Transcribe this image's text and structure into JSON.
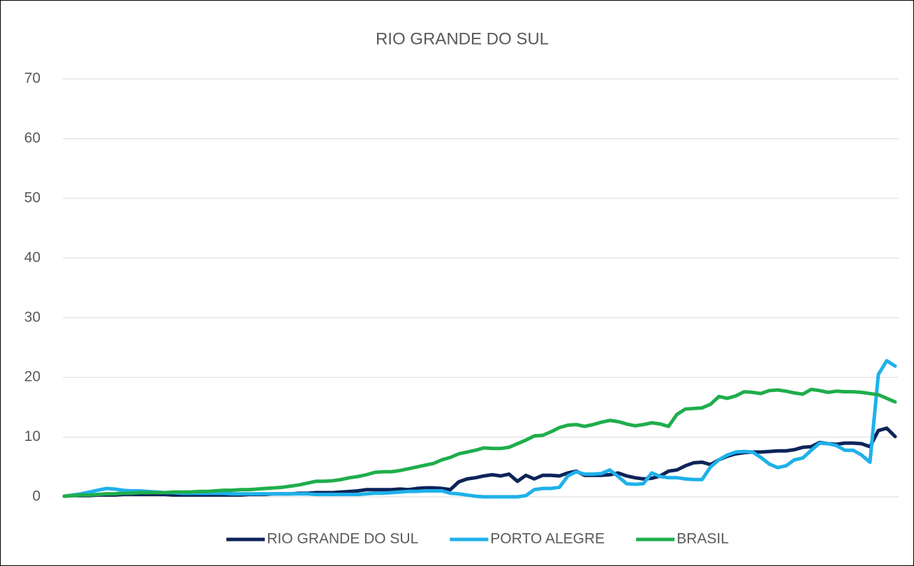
{
  "chart_data": {
    "type": "line",
    "title": "RIO GRANDE DO SUL",
    "categories": [
      null,
      null,
      null,
      null,
      null,
      null,
      null,
      null,
      null,
      null,
      null,
      null,
      null,
      null,
      null,
      null,
      null,
      null,
      null,
      null,
      null,
      null,
      null,
      null,
      null,
      null,
      null,
      null,
      null,
      null,
      null,
      null,
      null,
      null,
      null,
      null,
      null,
      null,
      null,
      null,
      null,
      null,
      null,
      null,
      null,
      null,
      null,
      null,
      null,
      null,
      null,
      null,
      null,
      null,
      null,
      null,
      null,
      null,
      null,
      null,
      null,
      null,
      null,
      null,
      null,
      null,
      null,
      null,
      null,
      null,
      null,
      null,
      null,
      null,
      null,
      null,
      null,
      null,
      null,
      null,
      null,
      null,
      null,
      null,
      null,
      null,
      null,
      null,
      null,
      null,
      null,
      null,
      null,
      null,
      null,
      null,
      null,
      null,
      null,
      null
    ],
    "series": [
      {
        "name": "RIO GRANDE DO SUL",
        "color": "#0c2459",
        "values": [
          0.1,
          0.2,
          0.2,
          0.2,
          0.3,
          0.3,
          0.3,
          0.4,
          0.4,
          0.4,
          0.4,
          0.4,
          0.4,
          0.3,
          0.3,
          0.3,
          0.3,
          0.3,
          0.3,
          0.3,
          0.3,
          0.3,
          0.4,
          0.4,
          0.4,
          0.5,
          0.5,
          0.5,
          0.6,
          0.6,
          0.7,
          0.7,
          0.7,
          0.8,
          0.9,
          1.0,
          1.2,
          1.2,
          1.2,
          1.2,
          1.3,
          1.2,
          1.4,
          1.5,
          1.5,
          1.4,
          1.2,
          2.5,
          3.0,
          3.2,
          3.5,
          3.7,
          3.5,
          3.8,
          2.6,
          3.6,
          3.0,
          3.6,
          3.6,
          3.5,
          4.0,
          4.3,
          3.6,
          3.6,
          3.6,
          3.7,
          4.0,
          3.5,
          3.2,
          3.0,
          3.1,
          3.5,
          4.3,
          4.5,
          5.2,
          5.7,
          5.8,
          5.4,
          6.2,
          6.8,
          7.2,
          7.4,
          7.5,
          7.5,
          7.6,
          7.7,
          7.7,
          7.9,
          8.3,
          8.4,
          9.1,
          8.9,
          8.8,
          9.0,
          9.0,
          8.9,
          8.4,
          11.1,
          11.5,
          10.1
        ]
      },
      {
        "name": "PORTO ALEGRE",
        "color": "#1eb1ea",
        "values": [
          0.1,
          0.3,
          0.5,
          0.8,
          1.1,
          1.4,
          1.3,
          1.1,
          1.0,
          1.0,
          0.9,
          0.8,
          0.7,
          0.7,
          0.6,
          0.6,
          0.6,
          0.6,
          0.6,
          0.6,
          0.5,
          0.5,
          0.5,
          0.5,
          0.5,
          0.5,
          0.5,
          0.5,
          0.5,
          0.5,
          0.4,
          0.4,
          0.4,
          0.4,
          0.4,
          0.4,
          0.5,
          0.6,
          0.6,
          0.7,
          0.8,
          0.9,
          0.9,
          1.0,
          1.0,
          1.0,
          0.6,
          0.5,
          0.3,
          0.1,
          0,
          0,
          0,
          0,
          0,
          0.2,
          1.2,
          1.4,
          1.4,
          1.6,
          3.5,
          4.2,
          3.8,
          3.8,
          3.9,
          4.5,
          3.4,
          2.2,
          2.1,
          2.2,
          4.0,
          3.4,
          3.2,
          3.2,
          3.0,
          2.9,
          2.9,
          5.0,
          6.2,
          7.0,
          7.5,
          7.6,
          7.5,
          6.6,
          5.5,
          4.9,
          5.2,
          6.2,
          6.5,
          7.8,
          9.0,
          8.9,
          8.6,
          7.8,
          7.8,
          7.0,
          5.8,
          20.5,
          22.8,
          21.9
        ]
      },
      {
        "name": "BRASIL",
        "color": "#1fae4c",
        "values": [
          0.1,
          0.2,
          0.3,
          0.3,
          0.4,
          0.5,
          0.5,
          0.6,
          0.6,
          0.7,
          0.7,
          0.7,
          0.7,
          0.8,
          0.8,
          0.8,
          0.9,
          0.9,
          1.0,
          1.1,
          1.1,
          1.2,
          1.2,
          1.3,
          1.4,
          1.5,
          1.6,
          1.8,
          2.0,
          2.3,
          2.6,
          2.6,
          2.7,
          2.9,
          3.2,
          3.4,
          3.7,
          4.1,
          4.2,
          4.2,
          4.4,
          4.7,
          5.0,
          5.3,
          5.6,
          6.2,
          6.6,
          7.2,
          7.5,
          7.8,
          8.2,
          8.1,
          8.1,
          8.3,
          8.9,
          9.5,
          10.2,
          10.3,
          10.9,
          11.6,
          12.0,
          12.1,
          11.8,
          12.1,
          12.5,
          12.8,
          12.6,
          12.2,
          11.9,
          12.1,
          12.4,
          12.2,
          11.8,
          13.8,
          14.7,
          14.8,
          14.9,
          15.5,
          16.8,
          16.5,
          16.9,
          17.6,
          17.5,
          17.3,
          17.8,
          17.9,
          17.7,
          17.4,
          17.2,
          18.0,
          17.8,
          17.5,
          17.7,
          17.6,
          17.6,
          17.5,
          17.3,
          17.1,
          16.5,
          15.9
        ]
      }
    ],
    "ylim": [
      0,
      70
    ],
    "yticks": [
      0,
      10,
      20,
      30,
      40,
      50,
      60,
      70
    ],
    "grid": true,
    "legend": "bottom"
  }
}
